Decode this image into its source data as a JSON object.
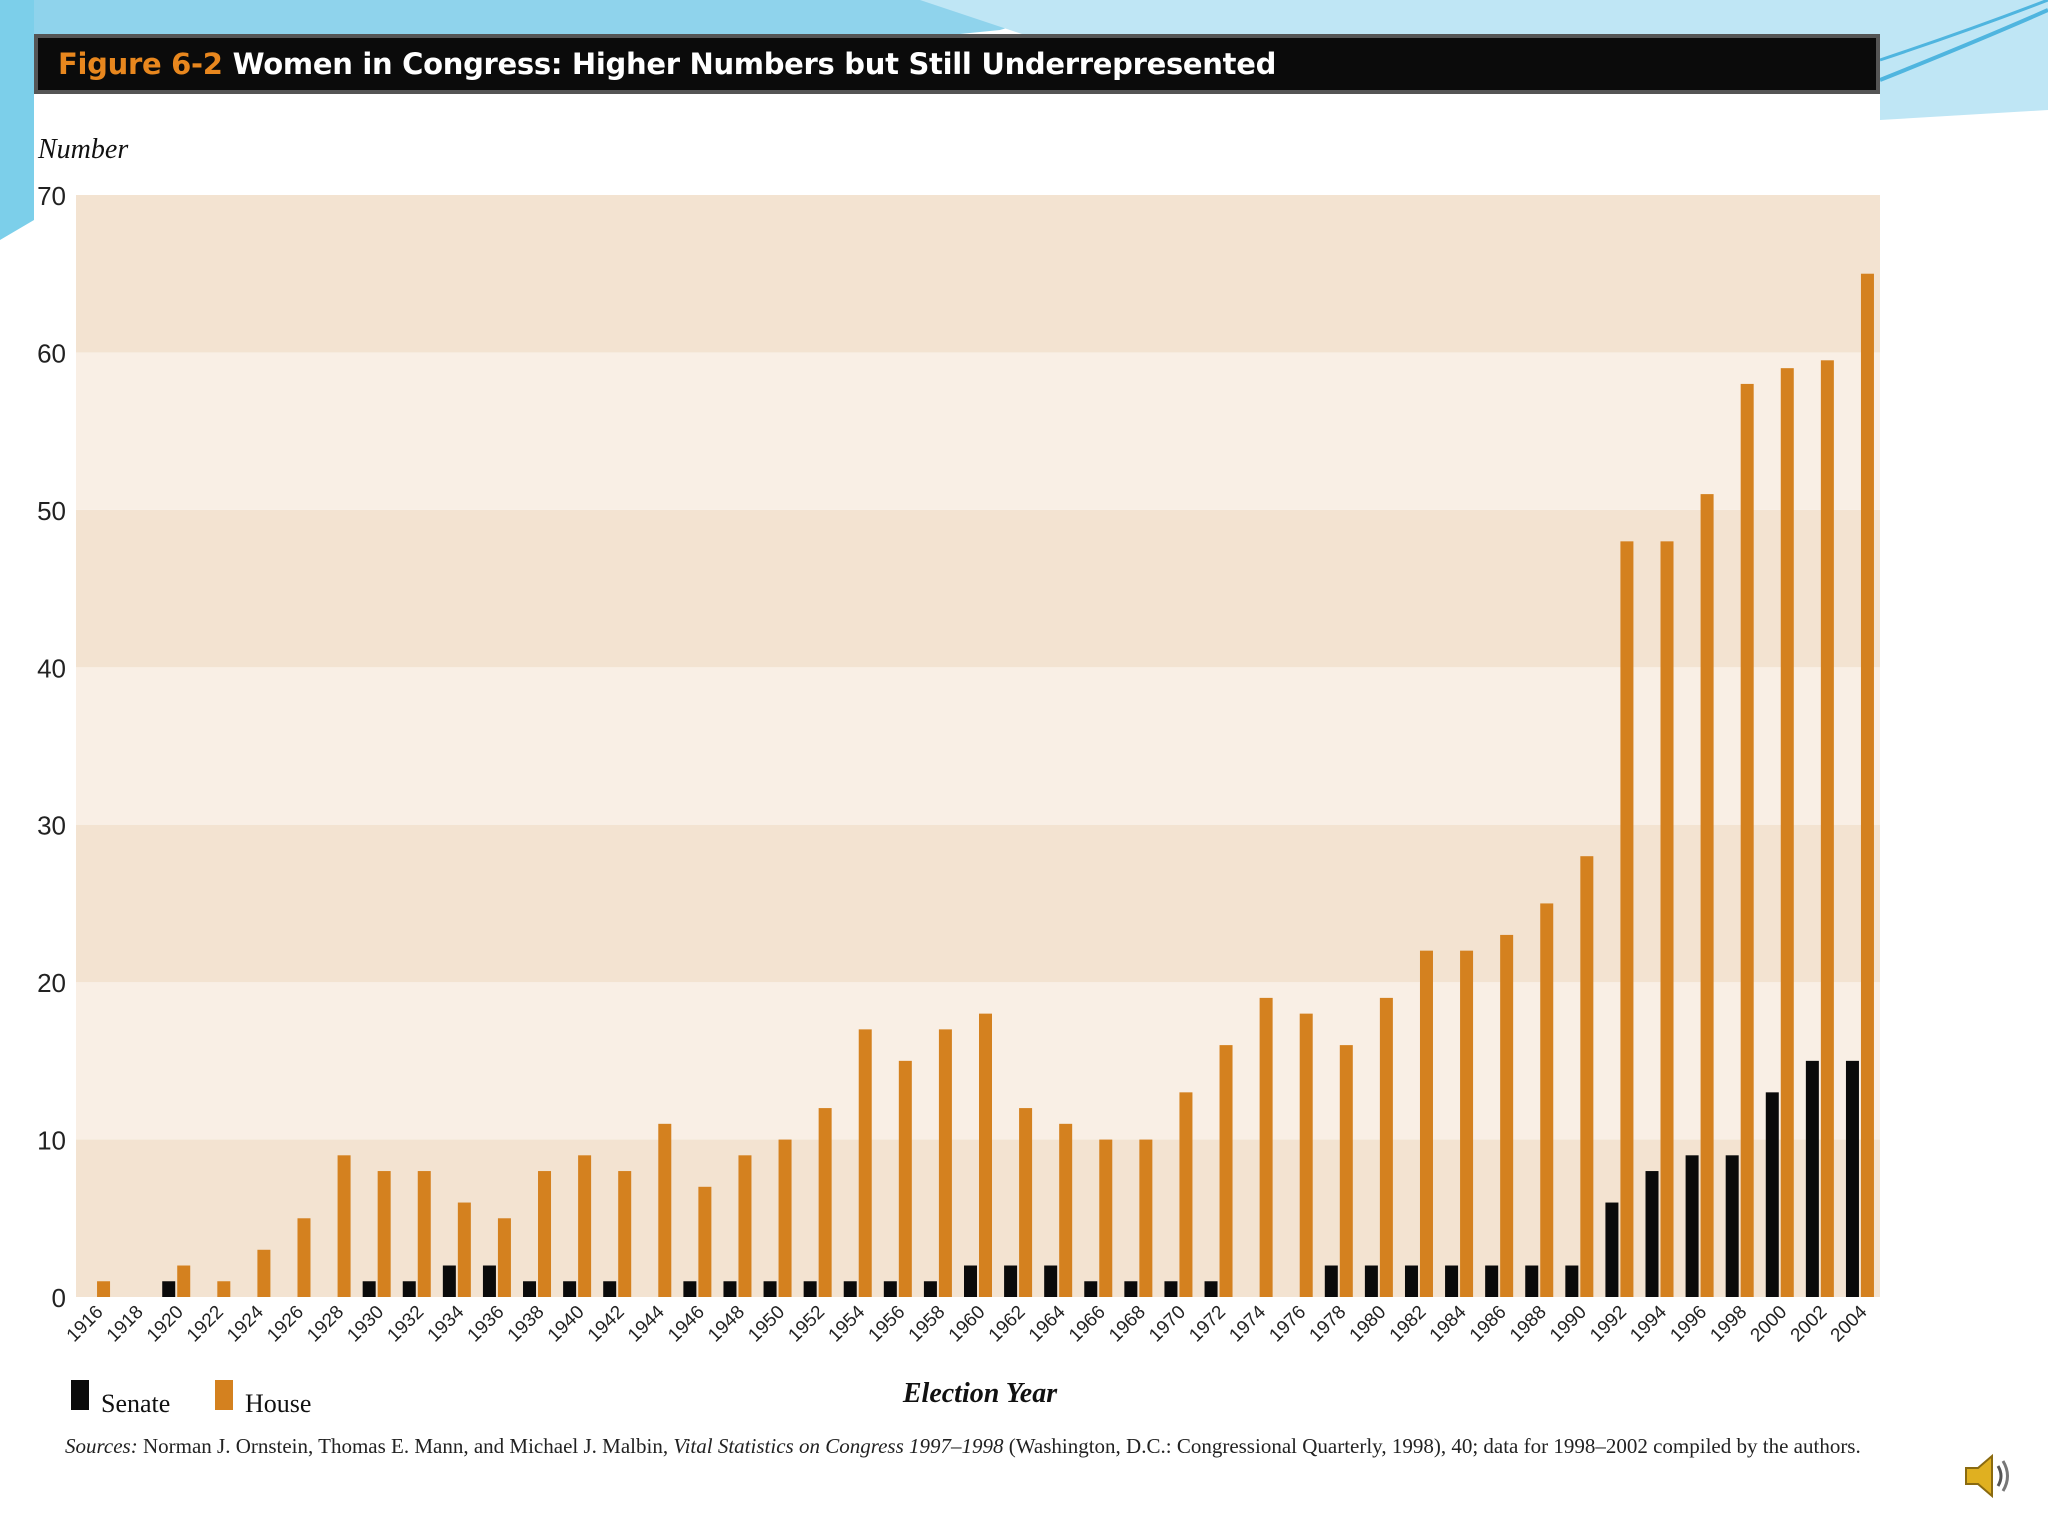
{
  "figure": {
    "label": "Figure 6-2",
    "title": "Women in Congress: Higher Numbers but Still Underrepresented"
  },
  "source": {
    "prefix": "Sources:",
    "text_1": "Norman J. Ornstein, Thomas E. Mann, and Michael J. Malbin,",
    "book": "Vital Statistics on Congress 1997–1998",
    "text_2": "(Washington, D.C.: Congressional Quarterly, 1998), 40; data for 1998–2002 compiled by the authors."
  },
  "icons": {
    "speaker": "speaker-icon"
  },
  "colors": {
    "senate": "#0a0a0a",
    "house": "#d4811f",
    "band_dark": "#f3e3d1",
    "band_light": "#f9efe5",
    "title_bar": "#0b0b0b",
    "figure_label": "#e8871e",
    "slide_accent": "#6fc7e6"
  },
  "chart_data": {
    "type": "bar",
    "xlabel": "Election Year",
    "ylabel": "Number",
    "ylim": [
      0,
      70
    ],
    "yticks": [
      0,
      10,
      20,
      30,
      40,
      50,
      60,
      70
    ],
    "grid": "alternating horizontal bands",
    "legend_position": "bottom-left",
    "categories": [
      "1916",
      "1918",
      "1920",
      "1922",
      "1924",
      "1926",
      "1928",
      "1930",
      "1932",
      "1934",
      "1936",
      "1938",
      "1940",
      "1942",
      "1944",
      "1946",
      "1948",
      "1950",
      "1952",
      "1954",
      "1956",
      "1958",
      "1960",
      "1962",
      "1964",
      "1966",
      "1968",
      "1970",
      "1972",
      "1974",
      "1976",
      "1978",
      "1980",
      "1982",
      "1984",
      "1986",
      "1988",
      "1990",
      "1992",
      "1994",
      "1996",
      "1998",
      "2000",
      "2002",
      "2004"
    ],
    "series": [
      {
        "name": "Senate",
        "color": "#0a0a0a",
        "values": [
          0,
          0,
          1,
          0,
          0,
          0,
          0,
          1,
          1,
          2,
          2,
          1,
          1,
          1,
          0,
          1,
          1,
          1,
          1,
          1,
          1,
          1,
          2,
          2,
          2,
          1,
          1,
          1,
          1,
          0,
          0,
          2,
          2,
          2,
          2,
          2,
          2,
          2,
          6,
          8,
          9,
          9,
          13,
          15,
          15
        ]
      },
      {
        "name": "House",
        "color": "#d4811f",
        "values": [
          1,
          0,
          2,
          1,
          3,
          5,
          9,
          8,
          8,
          6,
          5,
          8,
          9,
          8,
          11,
          7,
          9,
          10,
          12,
          17,
          15,
          17,
          18,
          12,
          11,
          10,
          10,
          13,
          16,
          19,
          18,
          16,
          19,
          22,
          22,
          23,
          25,
          28,
          48,
          48,
          51,
          58,
          59,
          59.5,
          65
        ]
      }
    ]
  }
}
